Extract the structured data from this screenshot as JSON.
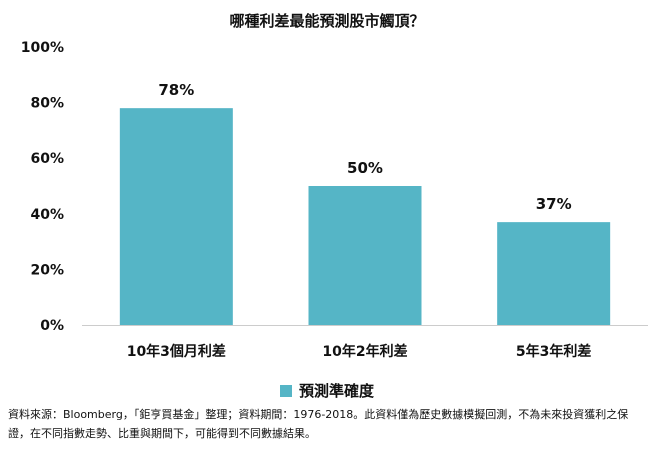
{
  "chart_data": {
    "type": "bar",
    "title": "哪種利差最能預測股市觸頂？",
    "categories": [
      "10年3個月利差",
      "10年2年利差",
      "5年3年利差"
    ],
    "series": [
      {
        "name": "預測準確度",
        "values": [
          78,
          50,
          37
        ],
        "labels": [
          "78%",
          "50%",
          "37%"
        ],
        "color": "#55b5c6"
      }
    ],
    "yticks": [
      "0%",
      "20%",
      "40%",
      "60%",
      "80%",
      "100%"
    ],
    "ylim": [
      0,
      100
    ],
    "grid": false,
    "legend_position": "bottom"
  },
  "source_text": "資料來源：Bloomberg，「鉅亨買基金」整理；資料期間：1976-2018。此資料僅為歷史數據模擬回測，不為未來投資獲利之保證，在不同指數走勢、比重與期間下，可能得到不同數據結果。"
}
